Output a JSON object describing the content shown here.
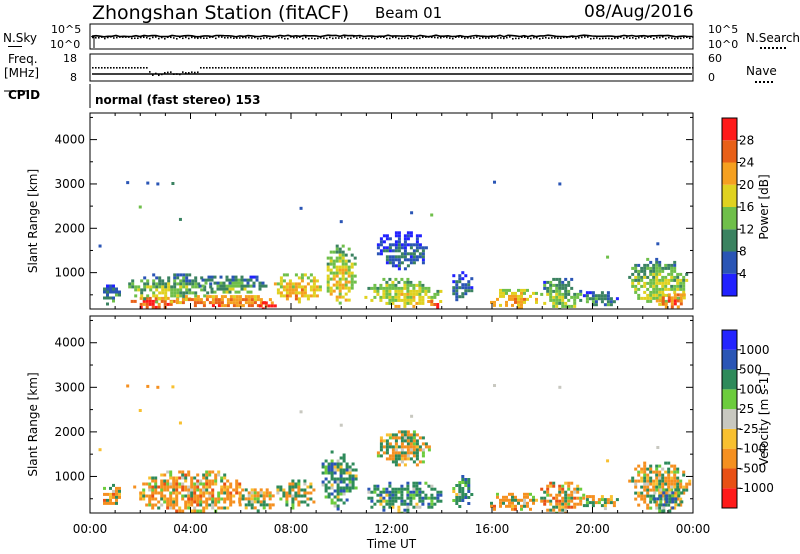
{
  "header": {
    "station": "Zhongshan Station (fitACF)",
    "beam": "Beam 01",
    "date": "08/Aug/2016"
  },
  "strip1": {
    "left_label": "N.Sky",
    "right_label": "N.Search",
    "left_ticks": [
      "10^5",
      "10^0"
    ],
    "right_ticks": [
      "10^5",
      "10^0"
    ]
  },
  "strip2": {
    "left_label": "Freq.",
    "left_unit": "[MHz]",
    "right_label": "Nave",
    "left_ticks": [
      "18",
      "8"
    ],
    "right_ticks": [
      "60",
      "0"
    ]
  },
  "cpid": {
    "label": "CPID",
    "text": "normal (fast stereo) 153"
  },
  "chart_data": [
    {
      "type": "heatmap",
      "name": "power",
      "ylabel": "Slant Range [km]",
      "ylim": [
        180,
        4600
      ],
      "yticks": [
        1000,
        2000,
        3000,
        4000
      ],
      "xlim": [
        0,
        24
      ],
      "xticks": [
        "00:00",
        "04:00",
        "08:00",
        "12:00",
        "16:00",
        "20:00",
        "00:00"
      ],
      "colorbar": {
        "label": "Power [dB]",
        "levels": [
          0,
          4,
          8,
          12,
          16,
          20,
          24,
          28,
          32
        ],
        "tick_labels": [
          "4",
          "8",
          "12",
          "16",
          "20",
          "24",
          "28"
        ],
        "colors": [
          "#2121ff",
          "#2a55b5",
          "#3a8260",
          "#6fbf4a",
          "#e0d220",
          "#f5a020",
          "#e86018",
          "#ff1a1a"
        ]
      },
      "blobs": [
        {
          "t0": 0.4,
          "t1": 1.2,
          "r0": 280,
          "r1": 800,
          "v": 10
        },
        {
          "t0": 1.5,
          "t1": 3.4,
          "r0": 200,
          "r1": 520,
          "v": 27
        },
        {
          "t0": 1.4,
          "t1": 4.8,
          "r0": 350,
          "r1": 1050,
          "v": 14
        },
        {
          "t0": 3.3,
          "t1": 7.3,
          "r0": 220,
          "r1": 560,
          "v": 24
        },
        {
          "t0": 4.2,
          "t1": 7.0,
          "r0": 550,
          "r1": 1000,
          "v": 12
        },
        {
          "t0": 6.6,
          "t1": 7.4,
          "r0": 200,
          "r1": 420,
          "v": 29
        },
        {
          "t0": 7.2,
          "t1": 9.2,
          "r0": 350,
          "r1": 1050,
          "v": 20
        },
        {
          "t0": 9.3,
          "t1": 10.6,
          "r0": 300,
          "r1": 1700,
          "v": 18
        },
        {
          "t0": 10.8,
          "t1": 14.0,
          "r0": 200,
          "r1": 950,
          "v": 17
        },
        {
          "t0": 11.3,
          "t1": 13.5,
          "r0": 1100,
          "r1": 2000,
          "v": 6
        },
        {
          "t0": 13.3,
          "t1": 14.0,
          "r0": 200,
          "r1": 450,
          "v": 27
        },
        {
          "t0": 14.3,
          "t1": 15.2,
          "r0": 300,
          "r1": 1100,
          "v": 8
        },
        {
          "t0": 15.8,
          "t1": 17.9,
          "r0": 200,
          "r1": 700,
          "v": 21
        },
        {
          "t0": 17.8,
          "t1": 19.6,
          "r0": 200,
          "r1": 950,
          "v": 13
        },
        {
          "t0": 19.5,
          "t1": 21.0,
          "r0": 250,
          "r1": 650,
          "v": 10
        },
        {
          "t0": 21.3,
          "t1": 23.9,
          "r0": 300,
          "r1": 1400,
          "v": 15
        },
        {
          "t0": 22.4,
          "t1": 23.8,
          "r0": 200,
          "r1": 600,
          "v": 25
        }
      ],
      "specks": [
        {
          "t": 1.5,
          "r": 3030,
          "v": 6
        },
        {
          "t": 2.3,
          "r": 3020,
          "v": 6
        },
        {
          "t": 2.7,
          "r": 3000,
          "v": 6
        },
        {
          "t": 3.3,
          "r": 3010,
          "v": 10
        },
        {
          "t": 2.0,
          "r": 2480,
          "v": 14
        },
        {
          "t": 3.6,
          "r": 2200,
          "v": 10
        },
        {
          "t": 8.4,
          "r": 2450,
          "v": 6
        },
        {
          "t": 10.0,
          "r": 2150,
          "v": 6
        },
        {
          "t": 12.8,
          "r": 2350,
          "v": 6
        },
        {
          "t": 13.6,
          "r": 2300,
          "v": 12
        },
        {
          "t": 16.1,
          "r": 3040,
          "v": 6
        },
        {
          "t": 18.7,
          "r": 3000,
          "v": 6
        },
        {
          "t": 20.6,
          "r": 1350,
          "v": 14
        },
        {
          "t": 22.6,
          "r": 1650,
          "v": 6
        },
        {
          "t": 0.4,
          "r": 1600,
          "v": 6
        }
      ]
    },
    {
      "type": "heatmap",
      "name": "velocity",
      "ylabel": "Slant Range [km]",
      "ylim": [
        180,
        4600
      ],
      "yticks": [
        1000,
        2000,
        3000,
        4000
      ],
      "xlim": [
        0,
        24
      ],
      "xticks": [
        "00:00",
        "04:00",
        "08:00",
        "12:00",
        "16:00",
        "20:00",
        "00:00"
      ],
      "xlabel": "Time UT",
      "colorbar": {
        "label": "Velocity [m s-1]",
        "levels": [
          -1500,
          -1000,
          -500,
          -100,
          -25,
          25,
          100,
          500,
          1000,
          1500
        ],
        "tick_labels": [
          "-1000",
          "-500",
          "-100",
          "-25",
          "25",
          "100",
          "500",
          "1000"
        ],
        "colors": [
          "#ff1a1a",
          "#e85015",
          "#f59020",
          "#f8c030",
          "#c8c8c0",
          "#6ccc3c",
          "#2e8a5a",
          "#2a55b5",
          "#2424ff"
        ]
      },
      "blobs": [
        {
          "t0": 0.4,
          "t1": 1.2,
          "r0": 250,
          "r1": 900,
          "v": -200
        },
        {
          "t0": 1.6,
          "t1": 6.3,
          "r0": 200,
          "r1": 1200,
          "v": -200
        },
        {
          "t0": 5.8,
          "t1": 7.4,
          "r0": 250,
          "r1": 800,
          "v": -60
        },
        {
          "t0": 7.3,
          "t1": 9.0,
          "r0": 300,
          "r1": 1000,
          "v": 60
        },
        {
          "t0": 9.1,
          "t1": 10.6,
          "r0": 300,
          "r1": 1650,
          "v": 300
        },
        {
          "t0": 10.8,
          "t1": 14.0,
          "r0": 200,
          "r1": 950,
          "v": 300
        },
        {
          "t0": 11.3,
          "t1": 13.5,
          "r0": 1200,
          "r1": 2100,
          "v": 0
        },
        {
          "t0": 14.3,
          "t1": 15.2,
          "r0": 300,
          "r1": 1100,
          "v": 300
        },
        {
          "t0": 15.8,
          "t1": 17.9,
          "r0": 200,
          "r1": 700,
          "v": -200
        },
        {
          "t0": 17.8,
          "t1": 19.6,
          "r0": 200,
          "r1": 950,
          "v": -200
        },
        {
          "t0": 19.5,
          "t1": 21.0,
          "r0": 250,
          "r1": 650,
          "v": -60
        },
        {
          "t0": 21.3,
          "t1": 23.9,
          "r0": 250,
          "r1": 1400,
          "v": -60
        },
        {
          "t0": 22.3,
          "t1": 23.6,
          "r0": 250,
          "r1": 800,
          "v": 300
        }
      ],
      "specks": [
        {
          "t": 1.5,
          "r": 3030,
          "v": -200
        },
        {
          "t": 2.3,
          "r": 3020,
          "v": -200
        },
        {
          "t": 2.7,
          "r": 3000,
          "v": -200
        },
        {
          "t": 3.3,
          "r": 3010,
          "v": -60
        },
        {
          "t": 2.0,
          "r": 2480,
          "v": -60
        },
        {
          "t": 3.6,
          "r": 2200,
          "v": -60
        },
        {
          "t": 8.4,
          "r": 2450,
          "v": 0
        },
        {
          "t": 10.0,
          "r": 2150,
          "v": 0
        },
        {
          "t": 12.8,
          "r": 2350,
          "v": 0
        },
        {
          "t": 16.1,
          "r": 3040,
          "v": 0
        },
        {
          "t": 18.7,
          "r": 3000,
          "v": 0
        },
        {
          "t": 20.6,
          "r": 1350,
          "v": -60
        },
        {
          "t": 22.6,
          "r": 1650,
          "v": 0
        },
        {
          "t": 0.4,
          "r": 1600,
          "v": -60
        }
      ]
    }
  ]
}
